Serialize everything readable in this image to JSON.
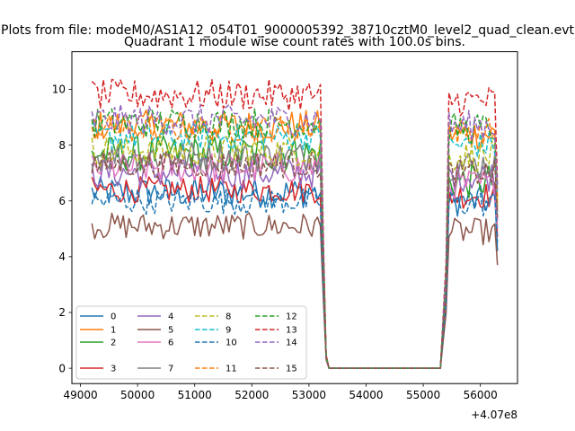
{
  "figure": {
    "suptitle": "Plots from file: modeM0/AS1A12_054T01_9000005392_38710cztM0_level2_quad_clean.evt",
    "title": "Quadrant 1 module wise count rates with 100.0s bins.",
    "offset_label": "+4.07e8"
  },
  "chart_data": {
    "type": "line",
    "title": "Quadrant 1 module wise count rates with 100.0s bins.",
    "xlabel": "",
    "ylabel": "",
    "x_offset_text": "+4.07e8",
    "xlim": [
      48850,
      56650
    ],
    "ylim": [
      -0.55,
      11.35
    ],
    "x_ticks": [
      49000,
      50000,
      51000,
      52000,
      53000,
      54000,
      55000,
      56000
    ],
    "x_tick_labels": [
      "49000",
      "50000",
      "51000",
      "52000",
      "53000",
      "54000",
      "55000",
      "56000"
    ],
    "y_ticks": [
      0,
      2,
      4,
      6,
      8,
      10
    ],
    "y_tick_labels": [
      "0",
      "2",
      "4",
      "6",
      "8",
      "10"
    ],
    "grid": false,
    "legend": {
      "placement": "lower-left",
      "columns": 4
    },
    "segments": [
      {
        "x_start": 49200,
        "x_end": 53200,
        "level": "high"
      },
      {
        "x_start": 53300,
        "x_end": 55300,
        "level": "zero"
      },
      {
        "x_start": 55400,
        "x_end": 56300,
        "level": "high"
      }
    ],
    "series": [
      {
        "name": "0",
        "color": "#1f77b4",
        "dash": "solid",
        "mean_first": 6.3,
        "mean_second": 6.0,
        "spread": 0.35,
        "last": 4.2
      },
      {
        "name": "1",
        "color": "#ff7f0e",
        "dash": "solid",
        "mean_first": 8.7,
        "mean_second": 8.4,
        "spread": 0.35,
        "last": 5.8
      },
      {
        "name": "2",
        "color": "#2ca02c",
        "dash": "solid",
        "mean_first": 7.7,
        "mean_second": 6.7,
        "spread": 0.4,
        "last": 5.0
      },
      {
        "name": "3",
        "color": "#d62728",
        "dash": "solid",
        "mean_first": 6.4,
        "mean_second": 6.2,
        "spread": 0.3,
        "last": 4.7
      },
      {
        "name": "4",
        "color": "#9467bd",
        "dash": "solid",
        "mean_first": 7.0,
        "mean_second": 6.9,
        "spread": 0.35,
        "last": 5.3
      },
      {
        "name": "5",
        "color": "#8c564b",
        "dash": "solid",
        "mean_first": 5.1,
        "mean_second": 4.9,
        "spread": 0.3,
        "last": 3.7
      },
      {
        "name": "6",
        "color": "#e377c2",
        "dash": "solid",
        "mean_first": 7.2,
        "mean_second": 6.6,
        "spread": 0.35,
        "last": 5.0
      },
      {
        "name": "7",
        "color": "#7f7f7f",
        "dash": "solid",
        "mean_first": 7.6,
        "mean_second": 7.3,
        "spread": 0.35,
        "last": 5.6
      },
      {
        "name": "8",
        "color": "#bcbd22",
        "dash": "dashed",
        "mean_first": 7.8,
        "mean_second": 7.6,
        "spread": 0.35,
        "last": 5.9
      },
      {
        "name": "9",
        "color": "#17becf",
        "dash": "dashed",
        "mean_first": 8.3,
        "mean_second": 8.0,
        "spread": 0.3,
        "last": 6.2
      },
      {
        "name": "10",
        "color": "#1f77b4",
        "dash": "dashed",
        "mean_first": 6.0,
        "mean_second": 5.9,
        "spread": 0.3,
        "last": 4.5
      },
      {
        "name": "11",
        "color": "#ff7f0e",
        "dash": "dashed",
        "mean_first": 8.6,
        "mean_second": 8.5,
        "spread": 0.3,
        "last": 6.1
      },
      {
        "name": "12",
        "color": "#2ca02c",
        "dash": "dashed",
        "mean_first": 8.8,
        "mean_second": 8.6,
        "spread": 0.35,
        "last": 6.5
      },
      {
        "name": "13",
        "color": "#d62728",
        "dash": "dashed",
        "mean_first": 9.8,
        "mean_second": 9.6,
        "spread": 0.35,
        "last": 6.6
      },
      {
        "name": "14",
        "color": "#9467bd",
        "dash": "dashed",
        "mean_first": 8.9,
        "mean_second": 8.7,
        "spread": 0.35,
        "last": 6.4
      },
      {
        "name": "15",
        "color": "#8c564b",
        "dash": "dashed",
        "mean_first": 7.3,
        "mean_second": 7.0,
        "spread": 0.3,
        "last": 5.4
      }
    ]
  }
}
